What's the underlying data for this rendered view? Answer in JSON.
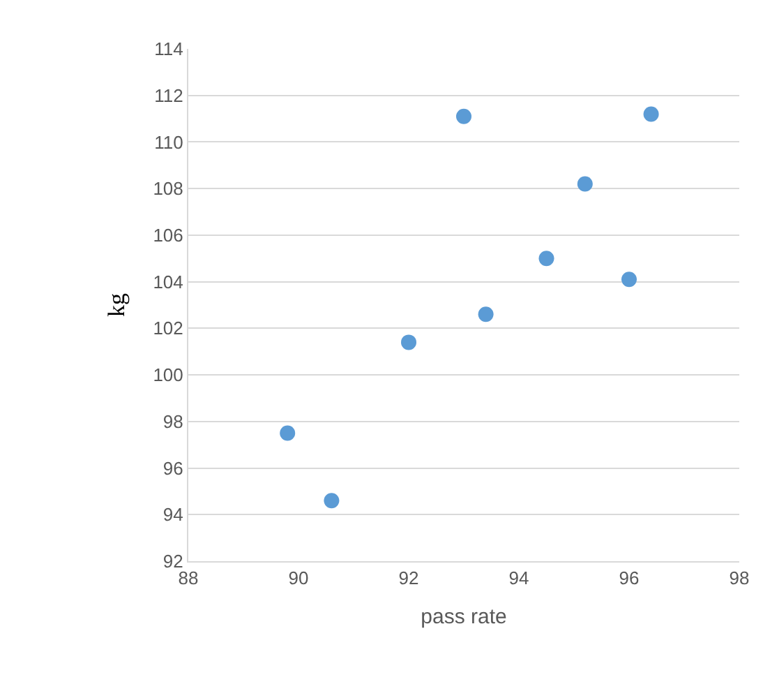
{
  "chart_data": {
    "type": "scatter",
    "xlabel": "pass rate",
    "ylabel": "kg",
    "x": [
      89.8,
      90.6,
      92.0,
      93.0,
      93.4,
      94.5,
      95.2,
      96.0,
      96.4
    ],
    "values": [
      97.5,
      94.6,
      101.4,
      111.1,
      102.6,
      105.0,
      108.2,
      104.1,
      111.2
    ],
    "color": "#5b9bd5",
    "marker": "circle",
    "xlim": [
      88,
      98
    ],
    "xticks": [
      88,
      90,
      92,
      94,
      96,
      98
    ],
    "ylim": [
      92,
      114
    ],
    "yticks": [
      92,
      94,
      96,
      98,
      100,
      102,
      104,
      106,
      108,
      110,
      112,
      114
    ],
    "grid": "y",
    "legend": false
  }
}
